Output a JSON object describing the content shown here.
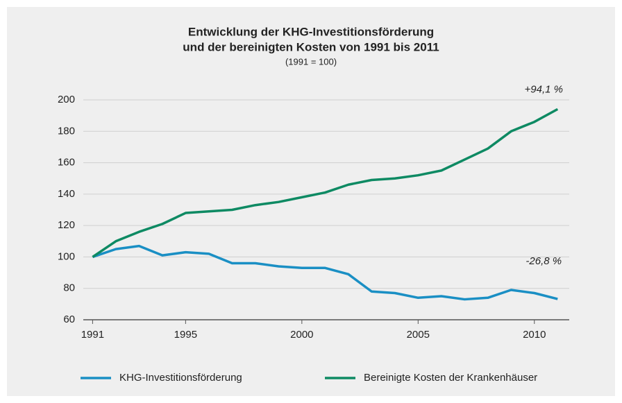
{
  "chart_data": {
    "type": "line",
    "title": [
      "Entwicklung der KHG-Investitionsförderung",
      "und der bereinigten Kosten von 1991 bis 2011"
    ],
    "subtitle": "(1991 = 100)",
    "x": [
      1991,
      1992,
      1993,
      1994,
      1995,
      1996,
      1997,
      1998,
      1999,
      2000,
      2001,
      2002,
      2003,
      2004,
      2005,
      2006,
      2007,
      2008,
      2009,
      2010,
      2011
    ],
    "series": [
      {
        "name": "KHG-Investitionsförderung",
        "color": "#1a8fc4",
        "values": [
          100,
          105,
          107,
          101,
          103,
          102,
          96,
          96,
          94,
          93,
          93,
          89,
          78,
          77,
          74,
          75,
          73,
          74,
          79,
          77,
          73.2
        ]
      },
      {
        "name": "Bereinigte Kosten der Krankenhäuser",
        "color": "#0e8a63",
        "values": [
          100,
          110,
          116,
          121,
          128,
          129,
          130,
          133,
          135,
          138,
          141,
          146,
          149,
          150,
          152,
          155,
          162,
          169,
          180,
          186,
          194.1
        ]
      }
    ],
    "annotations": [
      "-26,8 %",
      "+94,1 %"
    ],
    "xlim": [
      1990.6,
      2011.5
    ],
    "xticks": [
      1991,
      1995,
      2000,
      2005,
      2010
    ],
    "ylim": [
      60,
      200
    ],
    "yticks": [
      60,
      80,
      100,
      120,
      140,
      160,
      180,
      200
    ],
    "grid": true,
    "legend": "bottom"
  }
}
